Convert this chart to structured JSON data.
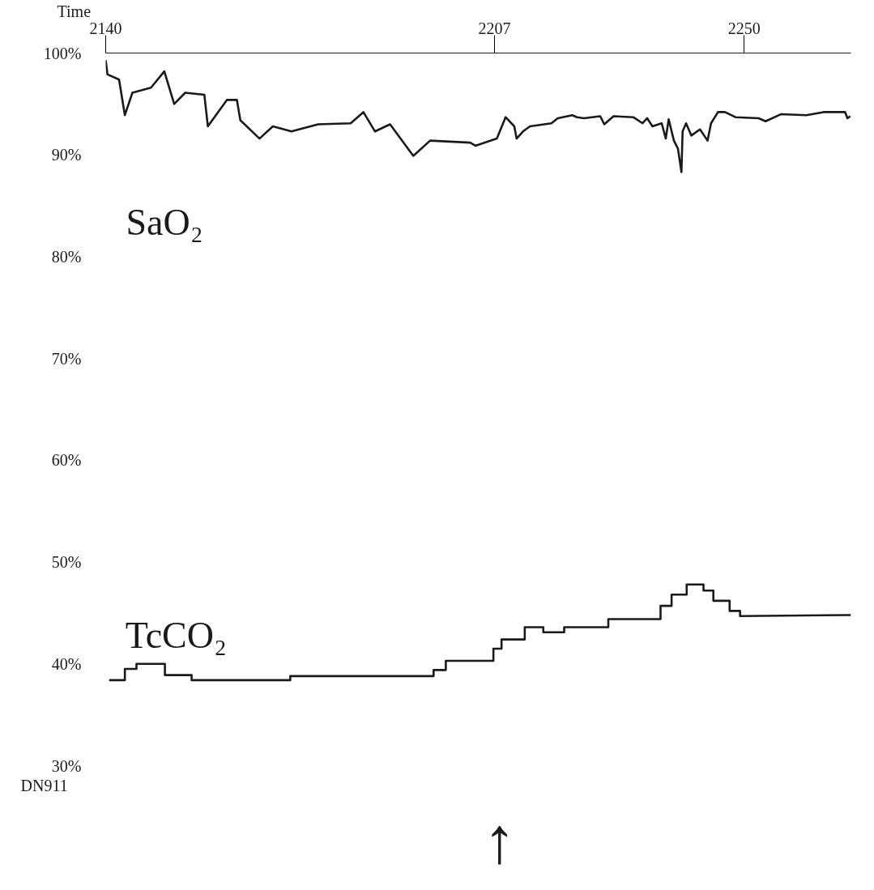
{
  "chart_data": {
    "type": "line",
    "xlabel": "Time",
    "x": [
      2140.0,
      2140.3,
      2142.3,
      2143.3,
      2144.6,
      2147.8,
      2150.1,
      2151.8,
      2153.7,
      2157.0,
      2157.6,
      2160.9,
      2162.6,
      2163.2,
      2166.5,
      2168.8,
      2172.0,
      2176.6,
      2182.2,
      2184.4,
      2186.4,
      2189.0,
      2193.0,
      2195.9,
      2202.8,
      2203.7,
      2207.4,
      2208.9,
      2210.4,
      2210.8,
      2211.9,
      2213.1,
      2216.8,
      2217.9,
      2220.4,
      2221.2,
      2222.4,
      2225.2,
      2225.9,
      2227.5,
      2230.9,
      2232.5,
      2233.3,
      2234.2,
      2235.8,
      2236.5,
      2237.0,
      2237.9,
      2238.6,
      2239.2,
      2239.4,
      2240.0,
      2240.9,
      2242.4,
      2243.7,
      2244.3,
      2245.5,
      2246.7,
      2248.5,
      2252.5,
      2253.7,
      2256.4,
      2260.7,
      2263.7,
      2267.4,
      2267.8,
      2268.3
    ],
    "series": [
      {
        "name": "SaO₂",
        "color": "#1a1a1a",
        "values": [
          99.3,
          97.9,
          97.4,
          93.9,
          96.1,
          96.6,
          98.2,
          95.0,
          96.1,
          95.9,
          92.8,
          95.4,
          95.4,
          93.4,
          91.6,
          92.8,
          92.3,
          93.0,
          93.1,
          94.2,
          92.3,
          93.0,
          89.9,
          91.4,
          91.2,
          90.9,
          91.6,
          93.7,
          92.8,
          91.6,
          92.3,
          92.8,
          93.1,
          93.6,
          93.9,
          93.7,
          93.6,
          93.8,
          93.0,
          93.8,
          93.7,
          93.1,
          93.6,
          92.8,
          93.1,
          91.6,
          93.5,
          91.4,
          90.6,
          88.3,
          92.3,
          93.1,
          91.9,
          92.5,
          91.4,
          93.1,
          94.2,
          94.2,
          93.7,
          93.6,
          93.3,
          94.0,
          93.9,
          94.2,
          94.2,
          93.6,
          93.8
        ]
      },
      {
        "name": "TcCO₂",
        "color": "#1a1a1a",
        "x": [
          2140.6,
          2143.3,
          2143.3,
          2145.3,
          2145.3,
          2150.2,
          2150.2,
          2154.8,
          2154.8,
          2171.8,
          2171.8,
          2196.5,
          2196.5,
          2198.6,
          2198.6,
          2206.8,
          2206.8,
          2208.2,
          2208.2,
          2212.2,
          2212.2,
          2215.4,
          2215.4,
          2219.0,
          2219.0,
          2226.6,
          2226.6,
          2235.6,
          2235.6,
          2237.5,
          2237.5,
          2240.1,
          2240.1,
          2243.0,
          2243.0,
          2244.7,
          2244.7,
          2247.5,
          2247.5,
          2249.3,
          2249.3,
          2268.4
        ],
        "values": [
          38.4,
          38.4,
          39.5,
          39.5,
          40.0,
          40.0,
          38.9,
          38.9,
          38.4,
          38.4,
          38.8,
          38.8,
          39.4,
          39.4,
          40.3,
          40.3,
          41.5,
          41.5,
          42.4,
          42.4,
          43.6,
          43.6,
          43.1,
          43.1,
          43.6,
          43.6,
          44.4,
          44.4,
          45.7,
          45.7,
          46.8,
          46.8,
          47.8,
          47.8,
          47.2,
          47.2,
          46.2,
          46.2,
          45.2,
          45.2,
          44.7,
          44.8
        ]
      }
    ],
    "annotations": [
      "DN911",
      "↑"
    ],
    "xlim": [
      2140,
      2268.4
    ],
    "xticks": [
      2140,
      2207,
      2250
    ],
    "ylim": [
      30,
      100
    ],
    "yticks": [
      {
        "value": 30,
        "label": "30%"
      },
      {
        "value": 40,
        "label": "40%"
      },
      {
        "value": 50,
        "label": "50%"
      },
      {
        "value": 60,
        "label": "60%"
      },
      {
        "value": 70,
        "label": "70%"
      },
      {
        "value": 80,
        "label": "80%"
      },
      {
        "value": 90,
        "label": "90%"
      },
      {
        "value": 100,
        "label": "100%"
      }
    ],
    "grid": false,
    "marker": "none",
    "line_style": "solid"
  }
}
